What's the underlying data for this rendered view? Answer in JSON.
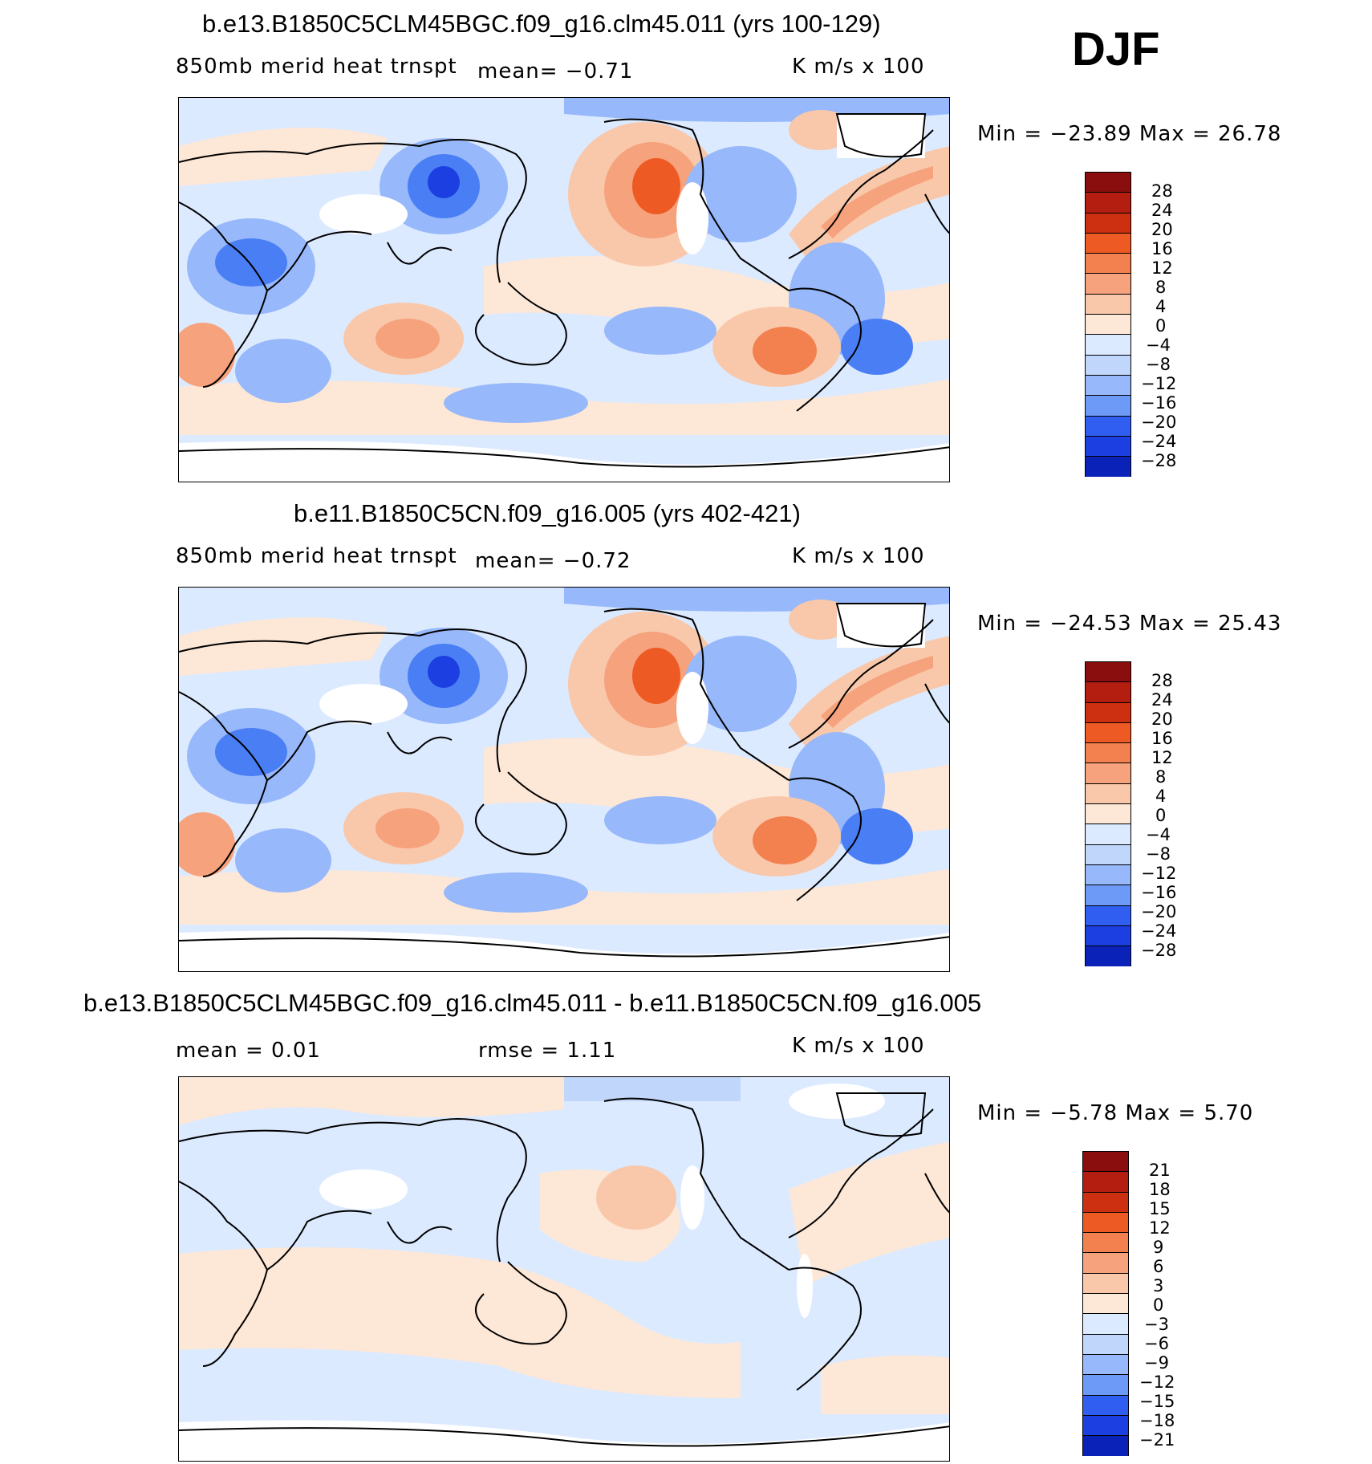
{
  "season": "DJF",
  "panels": [
    {
      "title": "b.e13.B1850C5CLM45BGC.f09_g16.clm45.011 (yrs 100-129)",
      "left_text": "850mb merid heat trnspt",
      "mean_text": "mean=   −0.71",
      "units": "K m/s x 100",
      "minmax": "Min = −23.89 Max =  26.78",
      "levels": [
        "28",
        "24",
        "20",
        "16",
        "12",
        "8",
        "4",
        "0",
        "−4",
        "−8",
        "−12",
        "−16",
        "−20",
        "−24",
        "−28"
      ]
    },
    {
      "title": "b.e11.B1850C5CN.f09_g16.005 (yrs 402-421)",
      "left_text": "850mb merid heat trnspt",
      "mean_text": "mean=   −0.72",
      "units": "K m/s x 100",
      "minmax": "Min = −24.53 Max =  25.43",
      "levels": [
        "28",
        "24",
        "20",
        "16",
        "12",
        "8",
        "4",
        "0",
        "−4",
        "−8",
        "−12",
        "−16",
        "−20",
        "−24",
        "−28"
      ]
    },
    {
      "title": "b.e13.B1850C5CLM45BGC.f09_g16.clm45.011 - b.e11.B1850C5CN.f09_g16.005",
      "left_text": "mean =    0.01",
      "mean_text": "rmse =    1.11",
      "units": "K m/s x 100",
      "minmax": "Min =   −5.78 Max =   5.70",
      "levels": [
        "21",
        "18",
        "15",
        "12",
        "9",
        "6",
        "3",
        "0",
        "−3",
        "−6",
        "−9",
        "−12",
        "−15",
        "−18",
        "−21"
      ]
    }
  ],
  "colors": {
    "scale": [
      "#0b0b8a",
      "#0a22b8",
      "#1b3fe0",
      "#2f5ef0",
      "#4a7ef5",
      "#6d9af7",
      "#97b8fa",
      "#c0d6fb",
      "#dceaff",
      "#fde7d6",
      "#f9c8aa",
      "#f6a27c",
      "#f3804f",
      "#ee5a24",
      "#cc3010",
      "#8a0e0e"
    ],
    "ocean_base": "#dceaff",
    "warm_light": "#fde7d6",
    "land_snow": "#ffffff"
  }
}
